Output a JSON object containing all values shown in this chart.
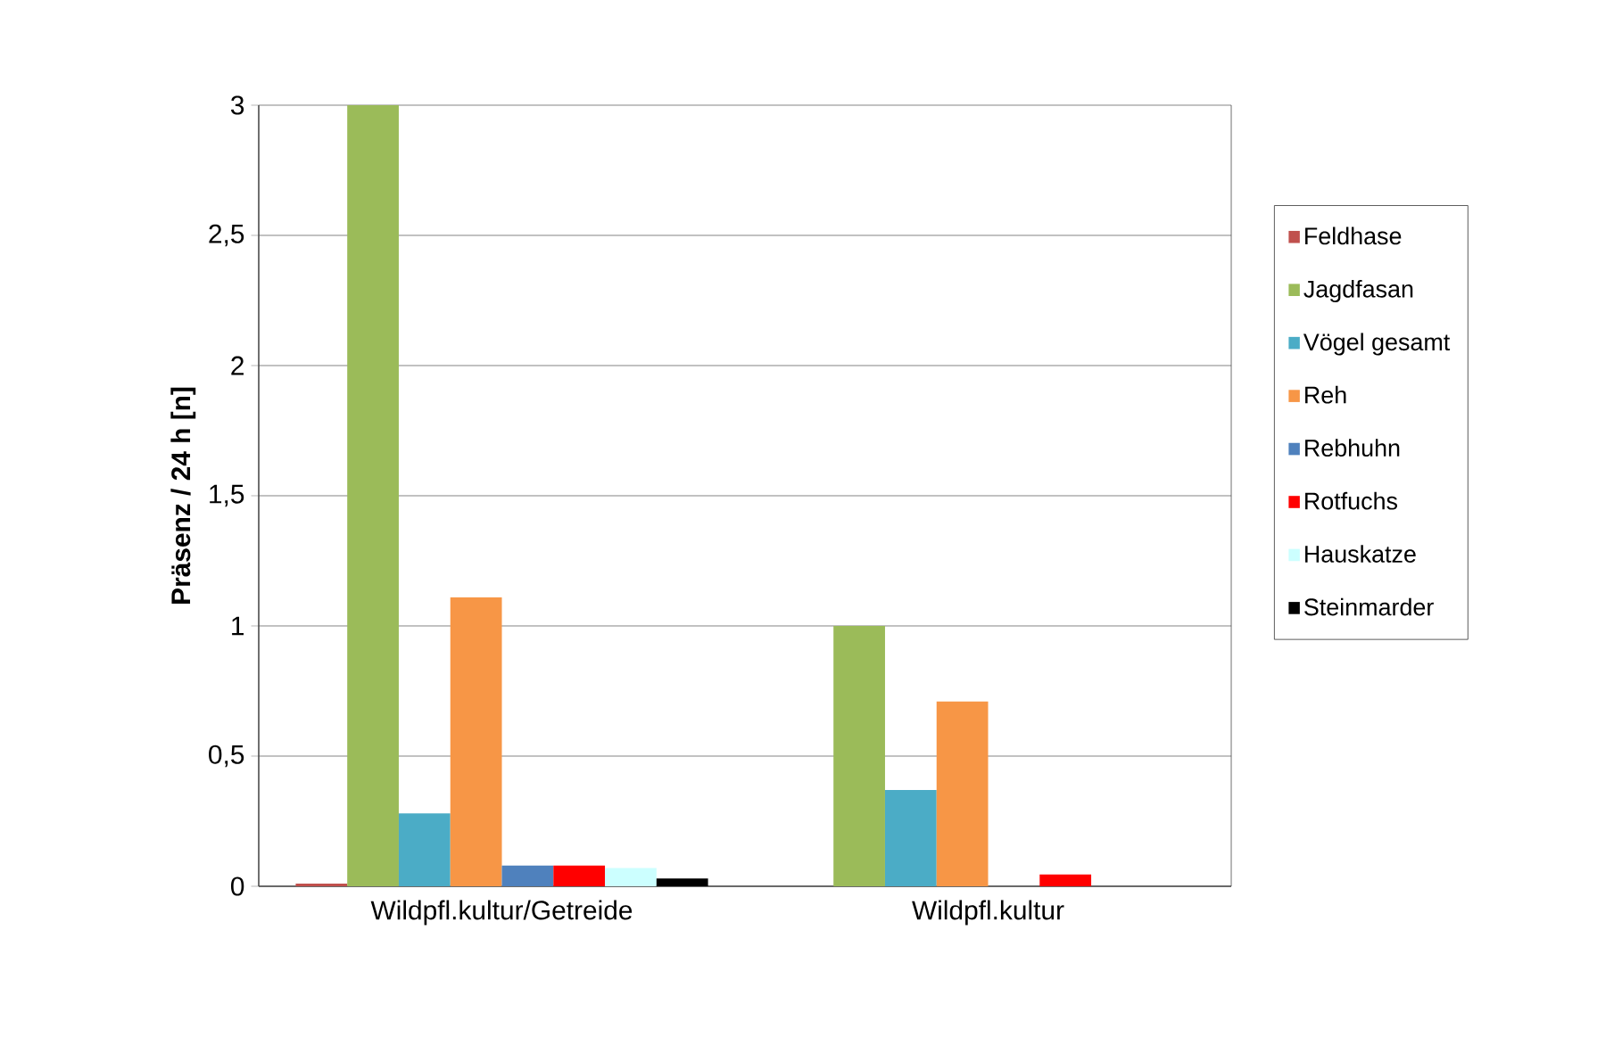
{
  "chart_data": {
    "type": "bar",
    "ylabel": "Präsenz / 24 h [n]",
    "categories": [
      "Wildpfl.kultur/Getreide",
      "Wildpfl.kultur"
    ],
    "series": [
      {
        "name": "Feldhase",
        "color": "#c0504d",
        "values": [
          0.01,
          0
        ]
      },
      {
        "name": "Jagdfasan",
        "color": "#9bbb59",
        "values": [
          3,
          1
        ]
      },
      {
        "name": "Vögel gesamt",
        "color": "#4bacc6",
        "values": [
          0.28,
          0.37
        ]
      },
      {
        "name": "Reh",
        "color": "#f79646",
        "values": [
          1.11,
          0.71
        ]
      },
      {
        "name": "Rebhuhn",
        "color": "#4f81bd",
        "values": [
          0.08,
          0
        ]
      },
      {
        "name": "Rotfuchs",
        "color": "#ff0000",
        "values": [
          0.08,
          0.045
        ]
      },
      {
        "name": "Hauskatze",
        "color": "#ccffff",
        "values": [
          0.07,
          null
        ]
      },
      {
        "name": "Steinmarder",
        "color": "#000000",
        "values": [
          0.03,
          0
        ]
      }
    ],
    "ylim": [
      0,
      3
    ],
    "yticks": [
      {
        "value": 0,
        "label": "0"
      },
      {
        "value": 0.5,
        "label": "0,5"
      },
      {
        "value": 1,
        "label": "1"
      },
      {
        "value": 1.5,
        "label": "1,5"
      },
      {
        "value": 2,
        "label": "2"
      },
      {
        "value": 2.5,
        "label": "2,5"
      },
      {
        "value": 3,
        "label": "3"
      }
    ],
    "grid": "y",
    "legend": "right"
  }
}
